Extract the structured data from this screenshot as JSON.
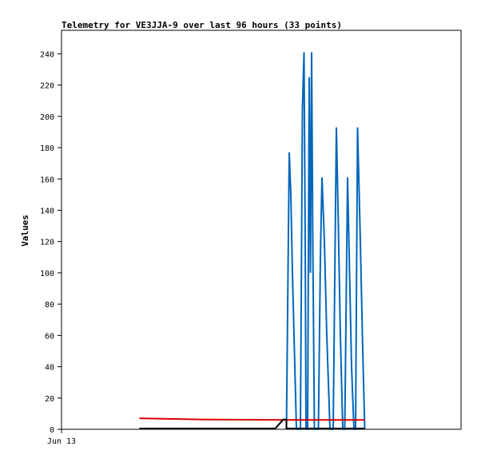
{
  "chart_data": {
    "type": "line",
    "title": "Telemetry for VE3JJA-9 over last 96 hours (33 points)",
    "ylabel": "Values",
    "xlabel": "",
    "ylim": [
      0,
      255
    ],
    "yticks": [
      0,
      20,
      40,
      60,
      80,
      100,
      120,
      140,
      160,
      180,
      200,
      220,
      240
    ],
    "x_tick_labels": [
      {
        "label": "Jun 13",
        "t": 0
      }
    ],
    "xlim": [
      0,
      100
    ],
    "grid": false,
    "series": [
      {
        "color": "#0066bb",
        "points": [
          [
            56.3,
            0
          ],
          [
            57.0,
            177
          ],
          [
            57.4,
            150
          ],
          [
            57.8,
            100
          ],
          [
            58.3,
            50
          ],
          [
            58.8,
            0
          ],
          [
            59.8,
            0
          ],
          [
            60.3,
            205
          ],
          [
            60.7,
            241
          ],
          [
            61.0,
            120
          ],
          [
            61.2,
            0
          ],
          [
            61.6,
            0
          ],
          [
            62.0,
            225
          ],
          [
            62.3,
            100
          ],
          [
            62.6,
            241
          ],
          [
            62.9,
            120
          ],
          [
            63.3,
            0
          ],
          [
            64.3,
            0
          ],
          [
            64.8,
            110
          ],
          [
            65.2,
            161
          ],
          [
            65.8,
            120
          ],
          [
            66.4,
            60
          ],
          [
            67.2,
            0
          ],
          [
            68.0,
            0
          ],
          [
            68.8,
            193
          ],
          [
            69.3,
            130
          ],
          [
            69.8,
            60
          ],
          [
            70.4,
            0
          ],
          [
            70.9,
            0
          ],
          [
            71.6,
            161
          ],
          [
            72.1,
            100
          ],
          [
            72.6,
            40
          ],
          [
            73.2,
            0
          ],
          [
            73.6,
            0
          ],
          [
            74.1,
            193
          ],
          [
            74.8,
            120
          ],
          [
            75.4,
            50
          ],
          [
            75.9,
            0
          ]
        ]
      },
      {
        "color": "#dd0000",
        "points": [
          [
            19.5,
            7
          ],
          [
            25.0,
            6.8
          ],
          [
            36.0,
            6.2
          ],
          [
            55.0,
            6.0
          ],
          [
            75.9,
            6.0
          ]
        ]
      },
      {
        "color": "#000000",
        "points": [
          [
            19.5,
            0.5
          ],
          [
            53.5,
            0.5
          ],
          [
            55.5,
            6.2
          ],
          [
            56.3,
            6.2
          ],
          [
            56.3,
            0.5
          ],
          [
            75.9,
            0.5
          ]
        ]
      }
    ]
  }
}
